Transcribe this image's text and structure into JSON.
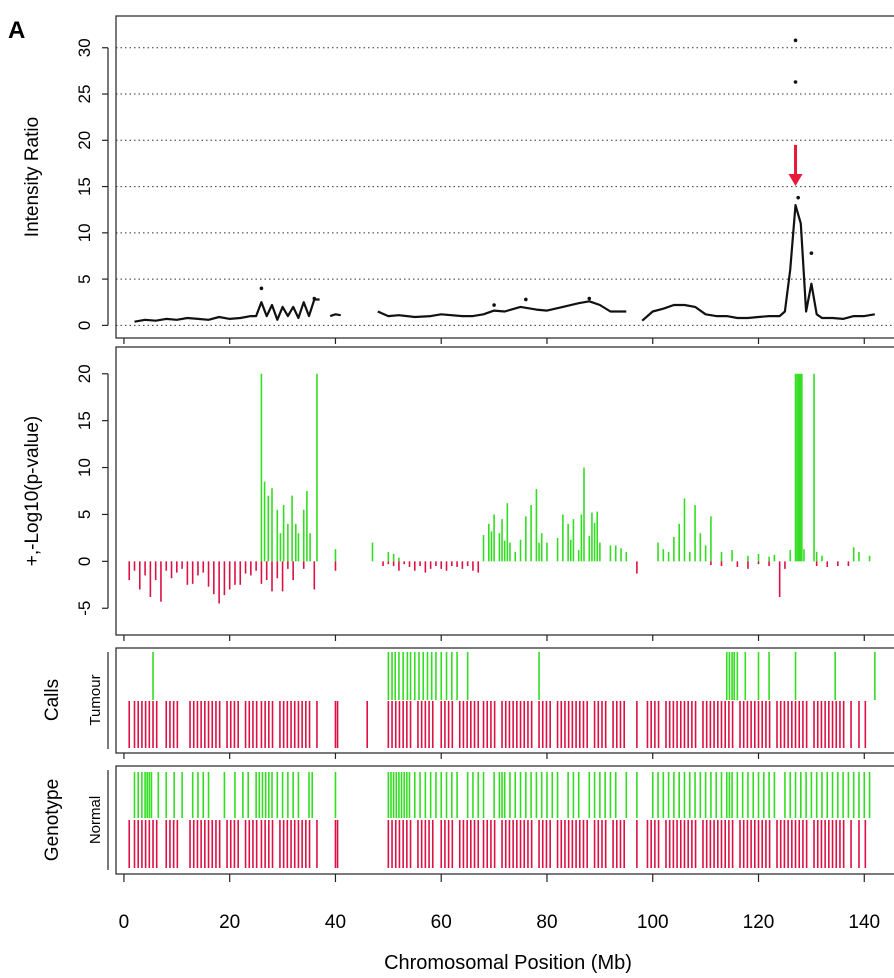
{
  "panel_label": "A",
  "colors": {
    "gain": "#33dd22",
    "loss": "#dd1144",
    "arrow": "#e8183a",
    "line": "#111111",
    "grid": "#333333"
  },
  "chart_data": [
    {
      "id": "intensity",
      "type": "line",
      "ylabel": "Intensity Ratio",
      "ylim": [
        -0.5,
        33
      ],
      "yticks": [
        0,
        5,
        10,
        15,
        20,
        25,
        30
      ],
      "grid": "horizontal-dotted",
      "xlim": [
        -1.5,
        146
      ],
      "x_ticks_no_labels": [
        0,
        20,
        40,
        60,
        80,
        100,
        120,
        140
      ],
      "series": [
        {
          "x": [
            2,
            4,
            6,
            8,
            10,
            12,
            14,
            16,
            18,
            20,
            22,
            24,
            25,
            26,
            27,
            28,
            29,
            30,
            31,
            32,
            33,
            34,
            35,
            36,
            37
          ],
          "y": [
            0.4,
            0.6,
            0.5,
            0.7,
            0.6,
            0.8,
            0.7,
            0.6,
            0.9,
            0.7,
            0.8,
            1.0,
            1.0,
            2.5,
            1.0,
            2.2,
            0.6,
            2.0,
            1.0,
            2.0,
            0.8,
            2.5,
            1.0,
            2.8,
            2.8
          ]
        },
        {
          "x": [
            39,
            40,
            41
          ],
          "y": [
            1.0,
            1.2,
            1.1
          ]
        },
        {
          "x": [
            48,
            50,
            52,
            55,
            58,
            60,
            64,
            66,
            68,
            70,
            72,
            75,
            78,
            80,
            83,
            86,
            88,
            90,
            92,
            95
          ],
          "y": [
            1.5,
            1.0,
            1.1,
            0.9,
            1.0,
            1.2,
            1.0,
            1.0,
            1.2,
            1.6,
            1.5,
            2.0,
            1.7,
            1.6,
            2.0,
            2.4,
            2.6,
            2.2,
            1.5,
            1.5
          ]
        },
        {
          "x": [
            98,
            100,
            102,
            104,
            106,
            108,
            110,
            112,
            114,
            116,
            118,
            120,
            122,
            124,
            125,
            126,
            127,
            128,
            129,
            130,
            131,
            132,
            134,
            136,
            138,
            140,
            142
          ],
          "y": [
            0.5,
            1.5,
            1.8,
            2.2,
            2.2,
            2.0,
            1.2,
            1.0,
            1.0,
            0.8,
            0.8,
            0.9,
            1.0,
            1.0,
            1.5,
            6.0,
            13.0,
            11.0,
            1.5,
            4.5,
            1.2,
            0.8,
            0.8,
            0.7,
            1.0,
            1.0,
            1.2
          ]
        }
      ],
      "points": [
        {
          "x": 127,
          "y": 30.8
        },
        {
          "x": 127,
          "y": 26.3
        },
        {
          "x": 127.5,
          "y": 13.8
        },
        {
          "x": 130,
          "y": 7.8
        },
        {
          "x": 26,
          "y": 4.0
        },
        {
          "x": 36,
          "y": 2.9
        },
        {
          "x": 76,
          "y": 2.8
        },
        {
          "x": 88,
          "y": 2.9
        },
        {
          "x": 70,
          "y": 2.2
        }
      ],
      "annotation": {
        "type": "arrow",
        "x": 127,
        "y_from": 19.5,
        "y_to": 15.5
      }
    },
    {
      "id": "pvalue",
      "type": "bar",
      "ylabel": "+,-Log10(p-value)",
      "ylim": [
        -7,
        22
      ],
      "yticks": [
        -5,
        0,
        5,
        10,
        15,
        20
      ],
      "xlim": [
        -1.5,
        146
      ],
      "x_ticks_no_labels": [
        0,
        20,
        40,
        60,
        80,
        100,
        120,
        140
      ],
      "gain_bars": {
        "x": [
          26,
          26.6,
          27.3,
          28,
          29,
          29.6,
          30.2,
          31,
          31.8,
          32.5,
          33,
          34,
          34.6,
          35.2,
          36.5,
          40,
          47,
          50,
          51,
          52,
          68,
          69,
          69.5,
          70,
          71,
          71.5,
          72,
          72.5,
          73,
          74,
          75,
          76,
          77,
          78,
          78.5,
          79,
          80,
          82,
          83,
          84,
          84.5,
          85,
          86,
          86.5,
          87,
          88,
          88.5,
          89,
          89.5,
          90,
          92,
          93,
          94,
          95,
          101,
          102,
          103,
          104,
          105,
          106,
          107,
          108,
          109,
          110,
          111,
          113,
          115,
          118,
          120,
          122,
          123,
          126,
          127,
          127.3,
          127.6,
          127.9,
          128.2,
          128.6,
          130.5,
          131,
          132,
          138,
          139,
          141
        ],
        "y": [
          20,
          8.5,
          7,
          7.8,
          5.5,
          3,
          6,
          4,
          7,
          4,
          3,
          5.5,
          7.5,
          3,
          20,
          1.3,
          2,
          1,
          0.8,
          0.4,
          2.8,
          4,
          3.2,
          5,
          3,
          4.5,
          2.2,
          6.2,
          2,
          1,
          2.3,
          4.8,
          6,
          7.7,
          2,
          3,
          2,
          2.5,
          5,
          4,
          2.3,
          4.5,
          1.2,
          5,
          10,
          2.7,
          5.2,
          4.1,
          5.3,
          2,
          1.7,
          1.7,
          1.4,
          1,
          2,
          1.3,
          1,
          2.6,
          4,
          6.7,
          1,
          6,
          3,
          1.7,
          4.8,
          1,
          1.2,
          0.6,
          0.8,
          0.5,
          0.7,
          1.2,
          20,
          20,
          20,
          20,
          20,
          1.3,
          20,
          1,
          0.6,
          1.5,
          1,
          0.6
        ]
      },
      "loss_bars": {
        "x": [
          1,
          2,
          3,
          4,
          5,
          6,
          7,
          8,
          9,
          10,
          11,
          12,
          13,
          14,
          15,
          16,
          17,
          18,
          19,
          20,
          21,
          22,
          23,
          24,
          25,
          26,
          27,
          28,
          29,
          30,
          31,
          32,
          34,
          36,
          40,
          49,
          50,
          51,
          52,
          53,
          54,
          55,
          56,
          57,
          58,
          59,
          60,
          61,
          62,
          63,
          64,
          65,
          66,
          67,
          97,
          111,
          113,
          116,
          118,
          120,
          122,
          124,
          125,
          131,
          133,
          135,
          137
        ],
        "y": [
          -2,
          -1,
          -3,
          -1.5,
          -3.8,
          -2,
          -4.3,
          -1,
          -1.8,
          -1.2,
          -0.8,
          -2.5,
          -2.4,
          -1.5,
          -1.2,
          -2.7,
          -3.5,
          -4.5,
          -3.6,
          -3,
          -2.5,
          -2.5,
          -1.3,
          -1.5,
          -1,
          -2.4,
          -2,
          -3.2,
          -1.8,
          -3.2,
          -0.8,
          -2,
          -0.8,
          -3,
          -1,
          -0.5,
          -0.3,
          -0.5,
          -1,
          -0.3,
          -0.6,
          -1,
          -0.5,
          -1.2,
          -0.8,
          -0.5,
          -0.8,
          -1,
          -0.5,
          -0.6,
          -0.8,
          -0.5,
          -1,
          -1.2,
          -1.3,
          -0.4,
          -0.5,
          -0.6,
          -0.8,
          -0.3,
          -0.5,
          -3.8,
          -0.8,
          -0.5,
          -0.6,
          -0.5,
          -0.5
        ]
      }
    },
    {
      "id": "tumour",
      "type": "bar",
      "ylabel": "Calls",
      "row_label": "Tumour",
      "xlim": [
        -1.5,
        146
      ],
      "x_ticks_no_labels": [
        0,
        20,
        40,
        60,
        80,
        100,
        120,
        140
      ],
      "gain_ticks": [
        5.5,
        50,
        50.7,
        51.3,
        52,
        52.8,
        53.6,
        54.2,
        55,
        55.8,
        56.6,
        57.4,
        58.2,
        59,
        60,
        61,
        62,
        63,
        65,
        78.5,
        114,
        114.5,
        115,
        115.4,
        116,
        117.5,
        120,
        122,
        127,
        134.5,
        142
      ],
      "loss_ticks": [
        1,
        2,
        2.7,
        3.4,
        4.1,
        4.8,
        5.5,
        6.2,
        8,
        8.7,
        9.4,
        10.1,
        12.5,
        13.2,
        13.9,
        14.6,
        15.3,
        16,
        16.7,
        17.4,
        18.1,
        19.5,
        20.2,
        20.9,
        21.6,
        23,
        23.7,
        24.4,
        25.1,
        26,
        26.7,
        27.4,
        28.1,
        29.5,
        30.2,
        30.9,
        31.6,
        32.3,
        33,
        33.7,
        34.4,
        35.1,
        36.5,
        40,
        40.4,
        46,
        50,
        50.7,
        51.4,
        52.1,
        52.8,
        53.5,
        54.2,
        55.6,
        56.3,
        57,
        57.7,
        58.4,
        60,
        60.7,
        61.4,
        62.1,
        63.5,
        64.2,
        64.9,
        65.6,
        66.3,
        67,
        68,
        68.7,
        69.4,
        70.1,
        71.5,
        72.2,
        72.9,
        73.6,
        74.3,
        75,
        75.7,
        76.4,
        77.1,
        78.5,
        79.2,
        79.9,
        80.6,
        82,
        82.7,
        83.4,
        84.1,
        84.8,
        85.5,
        86.2,
        86.9,
        87.6,
        89,
        89.7,
        90.4,
        91.1,
        92.5,
        93.2,
        93.9,
        94.6,
        97,
        99,
        99.7,
        100.4,
        101.1,
        102.5,
        103.2,
        103.9,
        104.6,
        105.3,
        106,
        106.7,
        107.4,
        108.1,
        109.5,
        110.2,
        110.9,
        111.6,
        112.3,
        113,
        113.7,
        114.4,
        115.1,
        116.5,
        117.2,
        117.9,
        118.6,
        119.3,
        120,
        120.7,
        121.4,
        122.1,
        123.5,
        124.2,
        124.9,
        125.6,
        126.3,
        127,
        127.7,
        128.4,
        129.1,
        130.5,
        131.2,
        131.9,
        132.6,
        133.3,
        134,
        134.7,
        135.4,
        136.1,
        137.5,
        139,
        140.2
      ]
    },
    {
      "id": "normal",
      "type": "bar",
      "ylabel": "Genotype",
      "row_label": "Normal",
      "xlabel": "Chromosomal Position (Mb)",
      "xlim": [
        -1.5,
        146
      ],
      "xticks": [
        0,
        20,
        40,
        60,
        80,
        100,
        120,
        140
      ],
      "gain_ticks": [
        2,
        2.7,
        3.4,
        4,
        4.4,
        4.8,
        5.2,
        6.5,
        8,
        9.5,
        11,
        13,
        14,
        15,
        16,
        19,
        21,
        22.5,
        23.5,
        25,
        25.6,
        26.2,
        26.8,
        27.4,
        28,
        29,
        30,
        31,
        32,
        33,
        35,
        35.6,
        40,
        50,
        50.5,
        51,
        51.5,
        52,
        52.5,
        53,
        53.5,
        54,
        55,
        56,
        57,
        58,
        59,
        60,
        61,
        62,
        63,
        65,
        66,
        67,
        68,
        70,
        71,
        71.5,
        72,
        73,
        74,
        75,
        76,
        77,
        78,
        79,
        80,
        81,
        82,
        84,
        85,
        86,
        88,
        89,
        90,
        91,
        92,
        93,
        95,
        97,
        100,
        101,
        102,
        103,
        104,
        105,
        106,
        107,
        108,
        109,
        110,
        111,
        112,
        113,
        114,
        114.5,
        115,
        116,
        117,
        118,
        119,
        120,
        121,
        122,
        123,
        125,
        126,
        127,
        128,
        129,
        130,
        131,
        132,
        133,
        134,
        135,
        136,
        137,
        138,
        139,
        140,
        141
      ],
      "loss_ticks": [
        1,
        2,
        2.7,
        3.4,
        4.1,
        4.8,
        5.5,
        6.2,
        8,
        8.7,
        9.4,
        10.1,
        12.5,
        13.2,
        13.9,
        14.6,
        15.3,
        16,
        16.7,
        17.4,
        18.1,
        19.5,
        20.2,
        20.9,
        21.6,
        23,
        23.7,
        24.4,
        25.1,
        26,
        26.7,
        27.4,
        28.1,
        29.5,
        30.2,
        30.9,
        31.6,
        32.3,
        33,
        33.7,
        34.4,
        35.1,
        36.5,
        40,
        40.4,
        50,
        50.7,
        51.4,
        52.1,
        52.8,
        53.5,
        54.2,
        55.6,
        56.3,
        57,
        57.7,
        58.4,
        60,
        60.7,
        61.4,
        62.1,
        63.5,
        64.2,
        64.9,
        65.6,
        66.3,
        67,
        68,
        68.7,
        69.4,
        70.1,
        71.5,
        72.2,
        72.9,
        73.6,
        74.3,
        75,
        75.7,
        76.4,
        77.1,
        78.5,
        79.2,
        79.9,
        80.6,
        82,
        82.7,
        83.4,
        84.1,
        84.8,
        85.5,
        86.2,
        86.9,
        87.6,
        89,
        89.7,
        90.4,
        91.1,
        92.5,
        93.2,
        93.9,
        94.6,
        97,
        99,
        99.7,
        100.4,
        101.1,
        102.5,
        103.2,
        103.9,
        104.6,
        105.3,
        106,
        106.7,
        107.4,
        108.1,
        109.5,
        110.2,
        110.9,
        111.6,
        112.3,
        113,
        113.7,
        114.4,
        115.1,
        116.5,
        117.2,
        117.9,
        118.6,
        119.3,
        120,
        120.7,
        121.4,
        122.1,
        123.5,
        124.2,
        124.9,
        125.6,
        126.3,
        127,
        127.7,
        128.4,
        129.1,
        130.5,
        131.2,
        131.9,
        132.6,
        133.3,
        134,
        134.7,
        135.4,
        136.1,
        137.5,
        139,
        140.2
      ]
    }
  ]
}
